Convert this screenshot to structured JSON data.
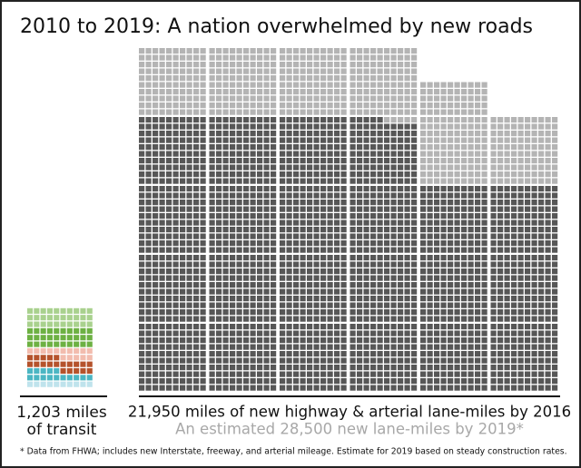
{
  "chart_data": {
    "type": "waffle",
    "title": "2010 to 2019: A nation overwhelmed by new roads",
    "transit": {
      "label": [
        "1,203 miles",
        "of transit"
      ],
      "segments": [
        {
          "color": "#bfe3ec",
          "value": 100
        },
        {
          "color": "#4bb6c3",
          "value": 150
        },
        {
          "color": "#b5532c",
          "value": 200
        },
        {
          "color": "#f2bcae",
          "value": 150
        },
        {
          "color": "#6db143",
          "value": 300
        },
        {
          "color": "#a9d18e",
          "value": 303
        }
      ]
    },
    "highway": {
      "label": "21,950 miles of new highway & arterial lane-miles by 2016",
      "value": 21950,
      "color": "#575757"
    },
    "estimate": {
      "label": "An estimated 28,500 new lane-miles by 2019*",
      "value": 28500,
      "color": "#b4b4b4"
    },
    "footnote": "* Data from FHWA; includes new Interstate, freeway, and arterial mileage. Estimate for 2019 based on steady construction rates."
  }
}
